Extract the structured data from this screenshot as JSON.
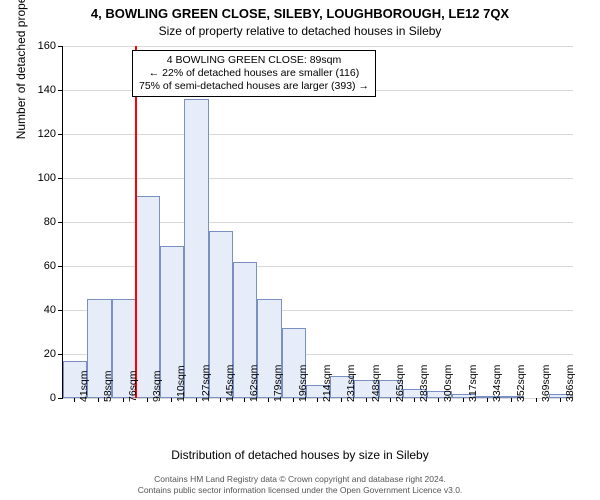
{
  "title": "4, BOWLING GREEN CLOSE, SILEBY, LOUGHBOROUGH, LE12 7QX",
  "subtitle": "Size of property relative to detached houses in Sileby",
  "ylabel": "Number of detached properties",
  "xlabel": "Distribution of detached houses by size in Sileby",
  "footer_line1": "Contains HM Land Registry data © Crown copyright and database right 2024.",
  "footer_line2": "Contains public sector information licensed under the Open Government Licence v3.0.",
  "info_line1": "4 BOWLING GREEN CLOSE: 89sqm",
  "info_line2": "← 22% of detached houses are smaller (116)",
  "info_line3": "75% of semi-detached houses are larger (393) →",
  "chart": {
    "type": "histogram",
    "ylim": [
      0,
      160
    ],
    "yticks": [
      0,
      20,
      40,
      60,
      80,
      100,
      120,
      140,
      160
    ],
    "xticks": [
      "41sqm",
      "58sqm",
      "76sqm",
      "93sqm",
      "110sqm",
      "127sqm",
      "145sqm",
      "162sqm",
      "179sqm",
      "196sqm",
      "214sqm",
      "231sqm",
      "248sqm",
      "265sqm",
      "283sqm",
      "300sqm",
      "317sqm",
      "334sqm",
      "352sqm",
      "369sqm",
      "386sqm"
    ],
    "values": [
      17,
      45,
      45,
      92,
      69,
      136,
      76,
      62,
      45,
      32,
      6,
      10,
      8,
      8,
      4,
      3,
      2,
      1,
      1,
      0,
      2
    ],
    "bar_fill": "#e6edf9",
    "bar_border": "#7b90c2",
    "grid_color": "#d9d9d9",
    "ref_line_color": "#ff0000",
    "ref_line_pos": 3,
    "background_color": "#ffffff",
    "axis_color": "#000000",
    "title_fontsize": 13,
    "subtitle_fontsize": 12,
    "label_fontsize": 12,
    "tick_fontsize": 11
  }
}
